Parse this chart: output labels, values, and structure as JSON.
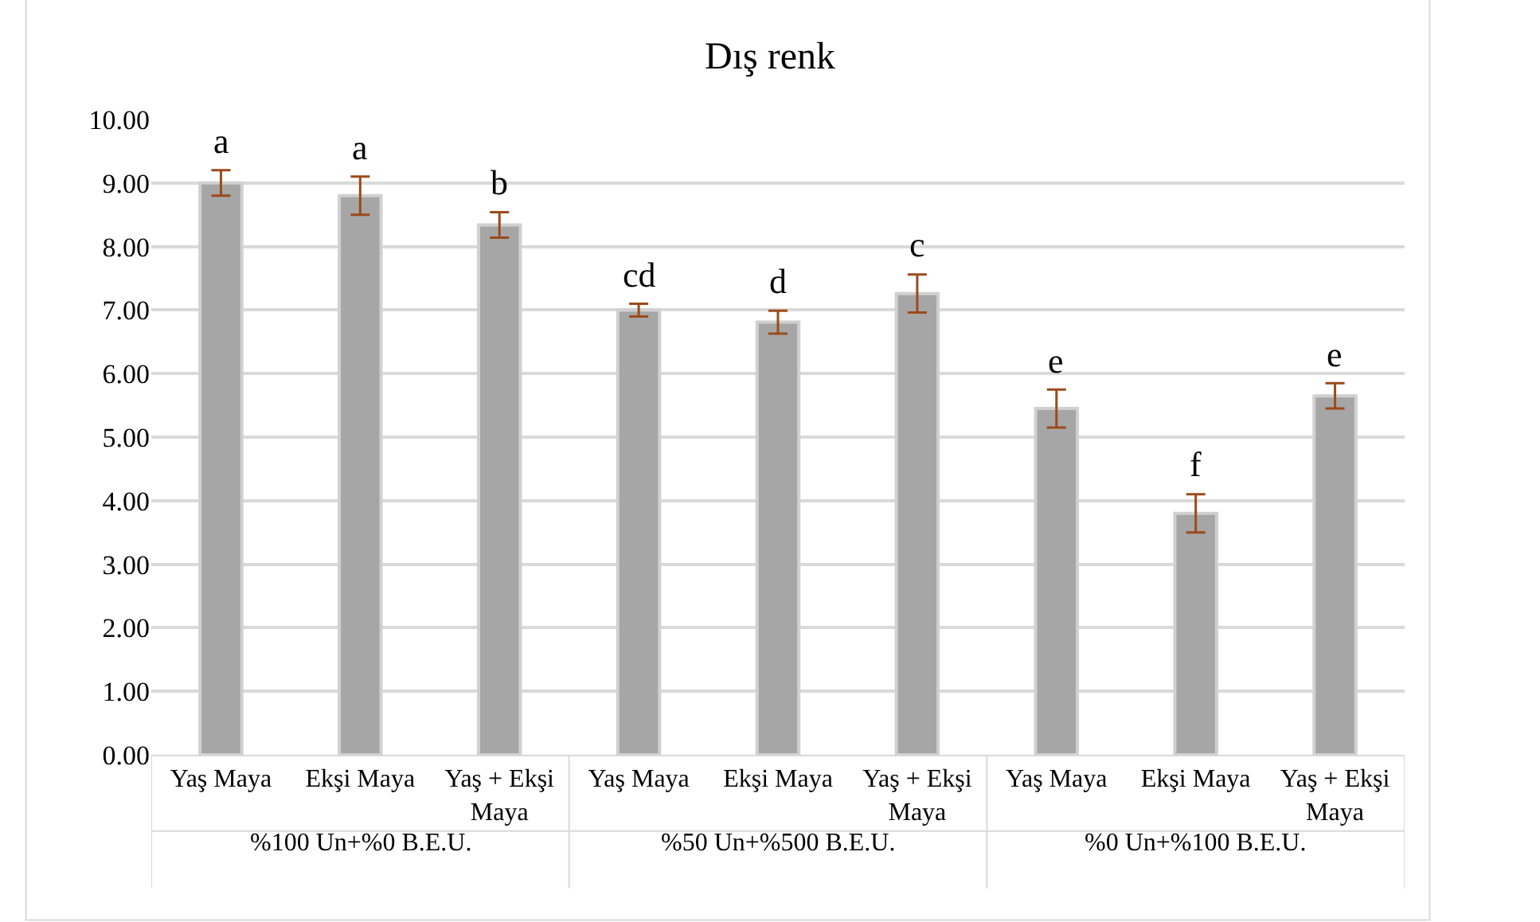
{
  "chart_data": {
    "type": "bar",
    "title": "Dış renk",
    "categories": [
      "Yaş Maya",
      "Ekşi Maya",
      "Yaş + Ekşi Maya",
      "Yaş Maya",
      "Ekşi Maya",
      "Yaş + Ekşi Maya",
      "Yaş Maya",
      "Ekşi Maya",
      "Yaş + Ekşi Maya"
    ],
    "annotations": [
      "%100 Un+%0 B.E.U.",
      "%50 Un+%500 B.E.U.",
      "%0 Un+%100 B.E.U."
    ],
    "values": [
      9.0,
      8.8,
      8.34,
      7.0,
      6.81,
      7.26,
      5.45,
      3.8,
      5.65
    ],
    "errors": [
      0.2,
      0.3,
      0.2,
      0.1,
      0.18,
      0.3,
      0.3,
      0.3,
      0.2
    ],
    "value_labels": [
      "a",
      "a",
      "b",
      "cd",
      "d",
      "c",
      "e",
      "f",
      "e"
    ],
    "color": "#a6a6a6",
    "ylim": [
      0,
      10
    ],
    "yticks": [
      {
        "value": 0,
        "label": "0.00"
      },
      {
        "value": 1,
        "label": "1.00"
      },
      {
        "value": 2,
        "label": "2.00"
      },
      {
        "value": 3,
        "label": "3.00"
      },
      {
        "value": 4,
        "label": "4.00"
      },
      {
        "value": 5,
        "label": "5.00"
      },
      {
        "value": 6,
        "label": "6.00"
      },
      {
        "value": 7,
        "label": "7.00"
      },
      {
        "value": 8,
        "label": "8.00"
      },
      {
        "value": 9,
        "label": "9.00"
      },
      {
        "value": 10,
        "label": "10.00"
      }
    ],
    "grid": "y",
    "legend": false
  }
}
